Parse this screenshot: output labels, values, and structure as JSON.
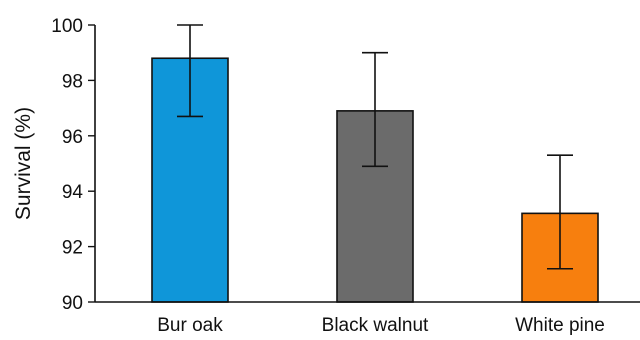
{
  "chart_data": {
    "type": "bar",
    "title": "",
    "xlabel": "",
    "ylabel": "Survival (%)",
    "ylim": [
      90,
      100
    ],
    "yticks": [
      90,
      92,
      94,
      96,
      98,
      100
    ],
    "grid": false,
    "categories": [
      "Bur oak",
      "Black walnut",
      "White pine"
    ],
    "values": [
      98.8,
      96.9,
      93.2
    ],
    "error_bars": [
      {
        "low": 96.7,
        "high": 100.0
      },
      {
        "low": 94.9,
        "high": 99.0
      },
      {
        "low": 91.2,
        "high": 95.3
      }
    ],
    "colors": [
      "#0f96d9",
      "#6b6b6b",
      "#f77f0e"
    ]
  }
}
